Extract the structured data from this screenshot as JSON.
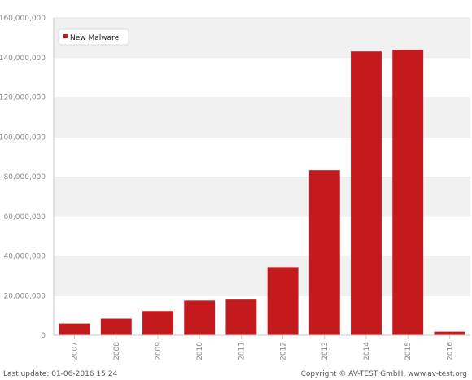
{
  "chart_data": {
    "type": "bar",
    "categories": [
      "2007",
      "2008",
      "2009",
      "2010",
      "2011",
      "2012",
      "2013",
      "2014",
      "2015",
      "2016"
    ],
    "series": [
      {
        "name": "New Malware",
        "values": [
          5900000,
          8400000,
          12200000,
          17500000,
          18000000,
          34300000,
          83200000,
          143100000,
          144000000,
          1800000
        ]
      }
    ],
    "yticks": [
      0,
      20000000,
      40000000,
      60000000,
      80000000,
      100000000,
      120000000,
      140000000,
      160000000
    ],
    "ylim": [
      0,
      160000000
    ],
    "legend_position": "top-left",
    "grid": true,
    "colors": {
      "bar": "#c41a1e",
      "legend_marker": "#c41a1e"
    }
  },
  "footer": {
    "last_update": "Last update: 01-06-2016 15:24",
    "copyright": "Copyright © AV-TEST GmbH, www.av-test.org"
  }
}
